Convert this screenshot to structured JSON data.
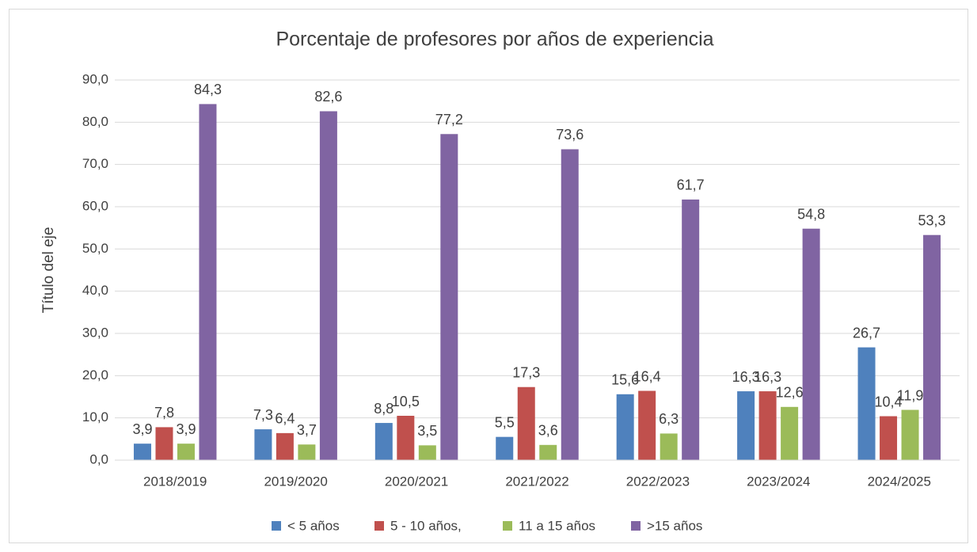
{
  "chart_data": {
    "type": "bar",
    "title": "Porcentaje de profesores por años de experiencia",
    "y_label": "Título del eje",
    "categories": [
      "2018/2019",
      "2019/2020",
      "2020/2021",
      "2021/2022",
      "2022/2023",
      "2023/2024",
      "2024/2025"
    ],
    "series": [
      {
        "name": "< 5 años",
        "color": "#4f81bd",
        "values": [
          3.9,
          7.3,
          8.8,
          5.5,
          15.6,
          16.3,
          26.7
        ],
        "value_labels": [
          "3,9",
          "7,3",
          "8,8",
          "5,5",
          "15,6",
          "16,3",
          "26,7"
        ]
      },
      {
        "name": "5 - 10 años,",
        "color": "#c0504d",
        "values": [
          7.8,
          6.4,
          10.5,
          17.3,
          16.4,
          16.3,
          10.4
        ],
        "value_labels": [
          "7,8",
          "6,4",
          "10,5",
          "17,3",
          "16,4",
          "16,3",
          "10,4"
        ]
      },
      {
        "name": "11 a 15 años",
        "color": "#9bbb59",
        "values": [
          3.9,
          3.7,
          3.5,
          3.6,
          6.3,
          12.6,
          11.9
        ],
        "value_labels": [
          "3,9",
          "3,7",
          "3,5",
          "3,6",
          "6,3",
          "12,6",
          "11,9"
        ]
      },
      {
        "name": ">15 años",
        "color": "#8064a2",
        "values": [
          84.3,
          82.6,
          77.2,
          73.6,
          61.7,
          54.8,
          53.3
        ],
        "value_labels": [
          "84,3",
          "82,6",
          "77,2",
          "73,6",
          "61,7",
          "54,8",
          "53,3"
        ]
      }
    ],
    "ylim": [
      0,
      90
    ],
    "yticks": [
      {
        "value": 0,
        "label": "0,0"
      },
      {
        "value": 10,
        "label": "10,0"
      },
      {
        "value": 20,
        "label": "20,0"
      },
      {
        "value": 30,
        "label": "30,0"
      },
      {
        "value": 40,
        "label": "40,0"
      },
      {
        "value": 50,
        "label": "50,0"
      },
      {
        "value": 60,
        "label": "60,0"
      },
      {
        "value": 70,
        "label": "70,0"
      },
      {
        "value": 80,
        "label": "80,0"
      },
      {
        "value": 90,
        "label": "90,0"
      }
    ],
    "grid": true,
    "legend": "bottom"
  }
}
